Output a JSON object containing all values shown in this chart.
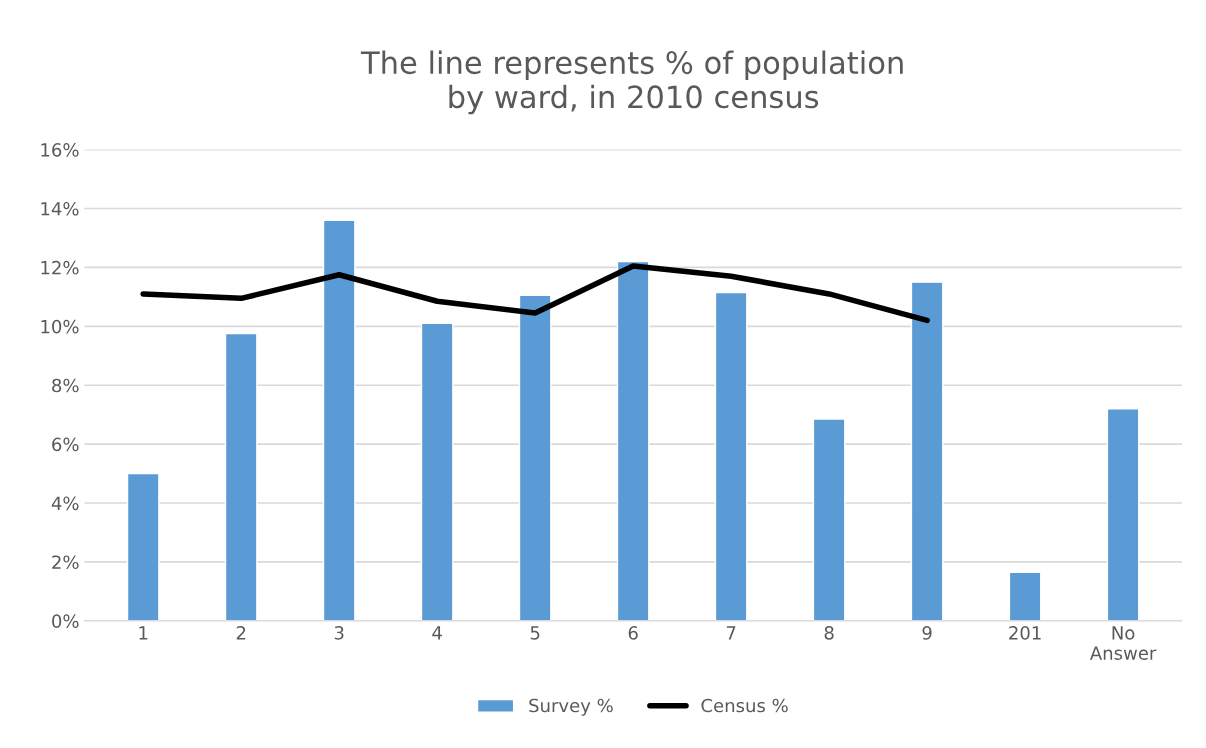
{
  "chart_data": {
    "type": "bar",
    "title": "The line represents % of population\nby ward, in 2010 census",
    "categories": [
      "1",
      "2",
      "3",
      "4",
      "5",
      "6",
      "7",
      "8",
      "9",
      "201",
      "No\nAnswer"
    ],
    "series": [
      {
        "name": "Survey %",
        "color": "#5b9bd5",
        "values": [
          5.0,
          9.75,
          13.6,
          10.1,
          11.05,
          12.2,
          11.15,
          6.85,
          11.5,
          1.65,
          7.2
        ]
      },
      {
        "name": "Census %",
        "type": "line",
        "color": "#000000",
        "values": [
          11.1,
          10.95,
          11.75,
          10.85,
          10.45,
          12.05,
          11.7,
          11.1,
          10.2,
          null,
          null
        ]
      }
    ],
    "ylim": [
      0,
      16
    ],
    "yticks": [
      {
        "value": 0,
        "label": "0%"
      },
      {
        "value": 2,
        "label": "2%"
      },
      {
        "value": 4,
        "label": "4%"
      },
      {
        "value": 6,
        "label": "6%"
      },
      {
        "value": 8,
        "label": "8%"
      },
      {
        "value": 10,
        "label": "10%"
      },
      {
        "value": 12,
        "label": "12%"
      },
      {
        "value": 14,
        "label": "14%"
      },
      {
        "value": 16,
        "label": "16%"
      }
    ],
    "grid": "y",
    "legend": "bottom",
    "marker": "none",
    "line_style": "solid"
  }
}
